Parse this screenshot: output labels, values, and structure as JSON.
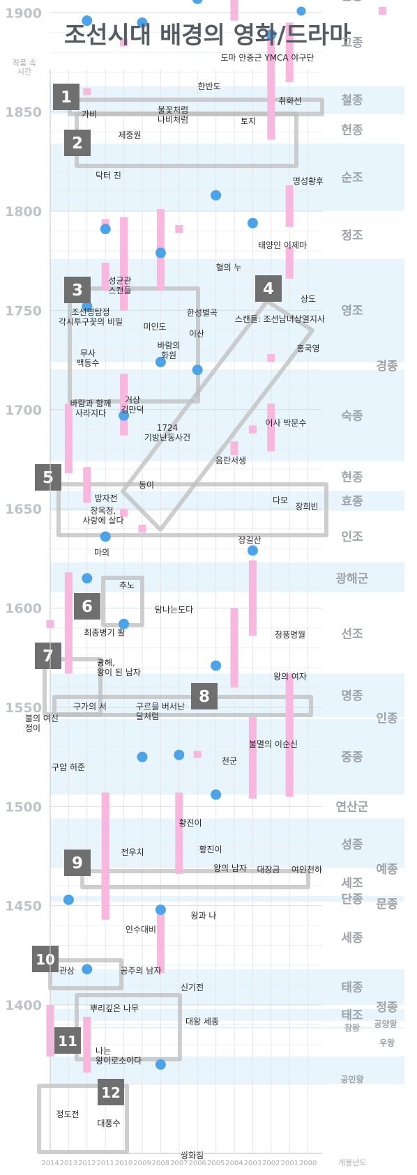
{
  "chart_data": {
    "type": "timeline-scatter",
    "title": "조선시대 배경의 영화/드라마",
    "ylabel": "작품 속 시간",
    "xlabel": "개봉년도",
    "x_direction": "descending",
    "xlim": [
      2014,
      2000
    ],
    "ylim": [
      1360,
      1910
    ],
    "x_ticks": [
      2014,
      2013,
      2012,
      2011,
      2010,
      2009,
      2008,
      2007,
      2006,
      2005,
      2004,
      2003,
      2002,
      2001,
      2000
    ],
    "y_ticks": [
      1900,
      1850,
      1800,
      1750,
      1700,
      1650,
      1600,
      1550,
      1500,
      1450,
      1400
    ],
    "legend": [
      {
        "marker": "circle",
        "color": "#4da3e8",
        "name": ""
      },
      {
        "marker": "square",
        "color": "#f7a8d8",
        "name": ""
      }
    ],
    "colors": {
      "movie": "#4da3e8",
      "drama": "#f7b7df",
      "band": "#e8f5fc",
      "box": "#bdbdbd",
      "badge": "#6f6f6f"
    },
    "reigns": [
      {
        "name": "순종",
        "start": 1907,
        "end": 1910
      },
      {
        "name": "고종",
        "start": 1863,
        "end": 1907
      },
      {
        "name": "철종",
        "start": 1849,
        "end": 1863
      },
      {
        "name": "헌종",
        "start": 1834,
        "end": 1849
      },
      {
        "name": "순조",
        "start": 1800,
        "end": 1834
      },
      {
        "name": "정조",
        "start": 1776,
        "end": 1800
      },
      {
        "name": "영조",
        "start": 1724,
        "end": 1776
      },
      {
        "name": "경종",
        "start": 1720,
        "end": 1724
      },
      {
        "name": "숙종",
        "start": 1674,
        "end": 1720
      },
      {
        "name": "현종",
        "start": 1659,
        "end": 1674
      },
      {
        "name": "효종",
        "start": 1649,
        "end": 1659
      },
      {
        "name": "인조",
        "start": 1623,
        "end": 1649
      },
      {
        "name": "광해군",
        "start": 1608,
        "end": 1623
      },
      {
        "name": "선조",
        "start": 1567,
        "end": 1608
      },
      {
        "name": "명종",
        "start": 1545,
        "end": 1567
      },
      {
        "name": "인종",
        "start": 1544,
        "end": 1545
      },
      {
        "name": "중종",
        "start": 1506,
        "end": 1544
      },
      {
        "name": "연산군",
        "start": 1494,
        "end": 1506
      },
      {
        "name": "성종",
        "start": 1469,
        "end": 1494
      },
      {
        "name": "예종",
        "start": 1468,
        "end": 1469
      },
      {
        "name": "세조",
        "start": 1455,
        "end": 1468
      },
      {
        "name": "단종",
        "start": 1452,
        "end": 1455
      },
      {
        "name": "문종",
        "start": 1450,
        "end": 1452
      },
      {
        "name": "세종",
        "start": 1418,
        "end": 1450
      },
      {
        "name": "태종",
        "start": 1400,
        "end": 1418
      },
      {
        "name": "정종",
        "start": 1398,
        "end": 1400
      },
      {
        "name": "태조",
        "start": 1392,
        "end": 1398
      },
      {
        "name": "공양왕",
        "start": 1389,
        "end": 1392
      },
      {
        "name": "창왕",
        "start": 1388,
        "end": 1389
      },
      {
        "name": "우왕",
        "start": 1374,
        "end": 1388
      },
      {
        "name": "공민왕",
        "start": 1351,
        "end": 1374
      }
    ],
    "movies": [
      {
        "title": "도마 안중근",
        "x": 2004,
        "y": 1909
      },
      {
        "title": "YMCA 야구단",
        "x": 2002,
        "y": 1909
      },
      {
        "title": "한반도",
        "x": 2006,
        "y": 1907
      },
      {
        "title": "가비",
        "x": 2012,
        "y": 1896
      },
      {
        "title": "불꽃처럼 나비처럼",
        "x": 2009,
        "y": 1895
      },
      {
        "title": "취화선",
        "x": 2002,
        "y": 1889
      },
      {
        "title": "혈의 누",
        "x": 2005,
        "y": 1808
      },
      {
        "title": "스캔들: 조선남녀상열지사",
        "x": 2003,
        "y": 1794
      },
      {
        "title": "조선명탐정 각시투구꽃의 비밀",
        "x": 2011,
        "y": 1791
      },
      {
        "title": "미인도",
        "x": 2008,
        "y": 1779
      },
      {
        "title": "바람과 함께 사라지다",
        "x": 2012,
        "y": 1752
      },
      {
        "title": "1724 기방난동사건",
        "x": 2008,
        "y": 1724
      },
      {
        "title": "음란서생",
        "x": 2006,
        "y": 1720
      },
      {
        "title": "방자전",
        "x": 2010,
        "y": 1697
      },
      {
        "title": "최종병기 활",
        "x": 2011,
        "y": 1636
      },
      {
        "title": "청풍명월",
        "x": 2003,
        "y": 1629
      },
      {
        "title": "광해, 왕이 된 남자",
        "x": 2012,
        "y": 1615
      },
      {
        "title": "구르믈 버서난 달처럼",
        "x": 2010,
        "y": 1592
      },
      {
        "title": "천군",
        "x": 2005,
        "y": 1571
      },
      {
        "title": "황진이",
        "x": 2007,
        "y": 1526
      },
      {
        "title": "전우치",
        "x": 2009,
        "y": 1525
      },
      {
        "title": "왕의 남자",
        "x": 2005,
        "y": 1506
      },
      {
        "title": "관상",
        "x": 2013,
        "y": 1453
      },
      {
        "title": "신기전",
        "x": 2008,
        "y": 1448
      },
      {
        "title": "나는 왕이로소이다",
        "x": 2012,
        "y": 1418
      },
      {
        "title": "쌍화점",
        "x": 2008,
        "y": 1370
      }
    ],
    "dramas": [
      {
        "title": "토지",
        "x": 2004,
        "y_start": 1896,
        "y_end": 1909
      },
      {
        "title": "명성황후",
        "x": 2001,
        "y_start": 1865,
        "y_end": 1895
      },
      {
        "title": "태양인 이제마",
        "x": 2002,
        "y_start": 1836,
        "y_end": 1890
      },
      {
        "title": "제중원",
        "x": 2010,
        "y_start": 1883,
        "y_end": 1887
      },
      {
        "title": "닥터 진",
        "x": 2012,
        "y_start": 1859,
        "y_end": 1862
      },
      {
        "title": "상도",
        "x": 2001,
        "y_start": 1792,
        "y_end": 1813
      },
      {
        "title": "성균관 스캔들",
        "x": 2011,
        "y_start": 1792,
        "y_end": 1796
      },
      {
        "title": "한성별곡",
        "x": 2007,
        "y_start": 1789,
        "y_end": 1793
      },
      {
        "title": "이산",
        "x": 2008,
        "y_start": 1760,
        "y_end": 1801
      },
      {
        "title": "바람의 화원",
        "x": 2008,
        "y_start": 1776,
        "y_end": 1782
      },
      {
        "title": "거상 김만덕",
        "x": 2010,
        "y_start": 1750,
        "y_end": 1797
      },
      {
        "title": "무사 백동수",
        "x": 2011,
        "y_start": 1760,
        "y_end": 1774
      },
      {
        "title": "홍국영",
        "x": 2001,
        "y_start": 1766,
        "y_end": 1782
      },
      {
        "title": "어사 박문수",
        "x": 2002,
        "y_start": 1724,
        "y_end": 1728
      },
      {
        "title": "동이",
        "x": 2010,
        "y_start": 1687,
        "y_end": 1718
      },
      {
        "title": "장희빈",
        "x": 2002,
        "y_start": 1679,
        "y_end": 1703
      },
      {
        "title": "다모",
        "x": 2003,
        "y_start": 1688,
        "y_end": 1692
      },
      {
        "title": "장길산",
        "x": 2004,
        "y_start": 1677,
        "y_end": 1684
      },
      {
        "title": "장옥정, 사랑에 살다",
        "x": 2013,
        "y_start": 1668,
        "y_end": 1703
      },
      {
        "title": "마의",
        "x": 2012,
        "y_start": 1653,
        "y_end": 1671
      },
      {
        "title": "추노",
        "x": 2010,
        "y_start": 1646,
        "y_end": 1650
      },
      {
        "title": "탐나는도다",
        "x": 2009,
        "y_start": 1638,
        "y_end": 1642
      },
      {
        "title": "왕의 여자",
        "x": 2003,
        "y_start": 1586,
        "y_end": 1624
      },
      {
        "title": "불멸의 이순신",
        "x": 2004,
        "y_start": 1560,
        "y_end": 1600
      },
      {
        "title": "구가의 서",
        "x": 2013,
        "y_start": 1587,
        "y_end": 1618
      },
      {
        "title": "불의 여신 정이",
        "x": 2014,
        "y_start": 1590,
        "y_end": 1594
      },
      {
        "title": "구암 허준",
        "x": 2013,
        "y_start": 1567,
        "y_end": 1615
      },
      {
        "title": "대장금",
        "x": 2003,
        "y_start": 1504,
        "y_end": 1545
      },
      {
        "title": "여인천하",
        "x": 2001,
        "y_start": 1505,
        "y_end": 1567
      },
      {
        "title": "황진이",
        "x": 2006,
        "y_start": 1525,
        "y_end": 1528
      },
      {
        "title": "왕과 나",
        "x": 2007,
        "y_start": 1466,
        "y_end": 1507
      },
      {
        "title": "인수대비",
        "x": 2011,
        "y_start": 1450,
        "y_end": 1507
      },
      {
        "title": "공주의 남자",
        "x": 2011,
        "y_start": 1443,
        "y_end": 1468
      },
      {
        "title": "뿌리깊은 나무",
        "x": 2011,
        "y_start": 1443,
        "y_end": 1450
      },
      {
        "title": "대왕 세종",
        "x": 2008,
        "y_start": 1416,
        "y_end": 1446
      },
      {
        "title": "정도전",
        "x": 2014,
        "y_start": 1374,
        "y_end": 1400
      },
      {
        "title": "대풍수",
        "x": 2012,
        "y_start": 1366,
        "y_end": 1394
      }
    ],
    "annotations": [
      {
        "label": "1"
      },
      {
        "label": "2"
      },
      {
        "label": "3"
      },
      {
        "label": "4"
      },
      {
        "label": "5"
      },
      {
        "label": "6"
      },
      {
        "label": "7"
      },
      {
        "label": "8"
      },
      {
        "label": "9"
      },
      {
        "label": "10"
      },
      {
        "label": "11"
      },
      {
        "label": "12"
      }
    ]
  }
}
